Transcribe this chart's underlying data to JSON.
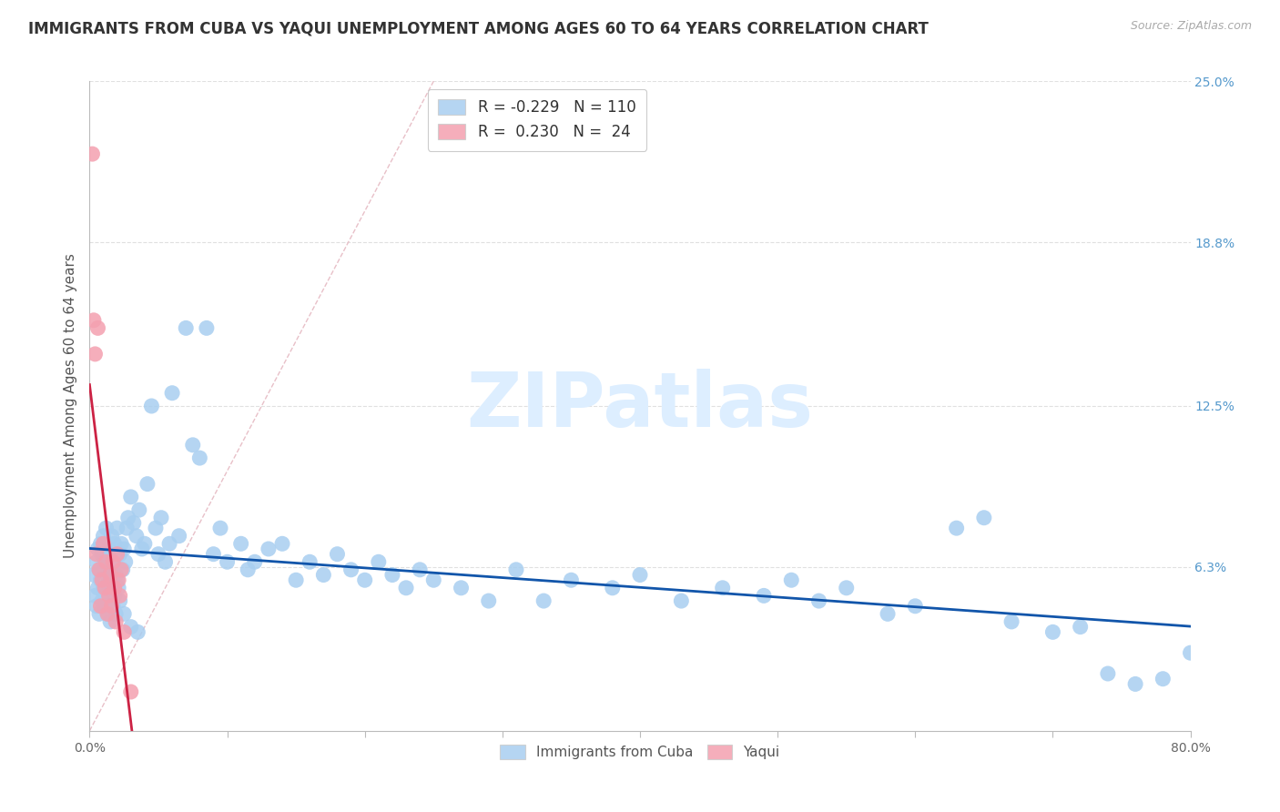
{
  "title": "IMMIGRANTS FROM CUBA VS YAQUI UNEMPLOYMENT AMONG AGES 60 TO 64 YEARS CORRELATION CHART",
  "source": "Source: ZipAtlas.com",
  "ylabel": "Unemployment Among Ages 60 to 64 years",
  "xlim": [
    0.0,
    0.8
  ],
  "ylim": [
    0.0,
    0.25
  ],
  "xtick_positions": [
    0.0,
    0.1,
    0.2,
    0.3,
    0.4,
    0.5,
    0.6,
    0.7,
    0.8
  ],
  "xticklabels": [
    "0.0%",
    "",
    "",
    "",
    "",
    "",
    "",
    "",
    "80.0%"
  ],
  "ytick_positions": [
    0.0,
    0.063,
    0.125,
    0.188,
    0.25
  ],
  "ytick_labels": [
    "",
    "6.3%",
    "12.5%",
    "18.8%",
    "25.0%"
  ],
  "series1_label": "Immigrants from Cuba",
  "series2_label": "Yaqui",
  "series1_color": "#a8cef0",
  "series2_color": "#f4a0b0",
  "series1_edge": "none",
  "series2_edge": "none",
  "trend1_color": "#1155aa",
  "trend2_color": "#cc2244",
  "ref_line_color": "#e8c0c8",
  "background_color": "#ffffff",
  "grid_color": "#e0e0e0",
  "title_fontsize": 12,
  "axis_fontsize": 11,
  "tick_fontsize": 10,
  "right_tick_color": "#5599cc",
  "watermark_text": "ZIPatlas",
  "watermark_color": "#ddeeff",
  "legend1_R": "-0.229",
  "legend1_N": "110",
  "legend2_R": "0.230",
  "legend2_N": "24",
  "scatter1_x": [
    0.003,
    0.004,
    0.005,
    0.005,
    0.006,
    0.006,
    0.007,
    0.007,
    0.008,
    0.008,
    0.009,
    0.009,
    0.01,
    0.01,
    0.011,
    0.011,
    0.012,
    0.012,
    0.013,
    0.013,
    0.014,
    0.014,
    0.015,
    0.015,
    0.016,
    0.016,
    0.017,
    0.017,
    0.018,
    0.018,
    0.019,
    0.019,
    0.02,
    0.02,
    0.021,
    0.022,
    0.023,
    0.024,
    0.025,
    0.026,
    0.027,
    0.028,
    0.03,
    0.032,
    0.034,
    0.036,
    0.038,
    0.04,
    0.042,
    0.045,
    0.048,
    0.05,
    0.052,
    0.055,
    0.058,
    0.06,
    0.065,
    0.07,
    0.075,
    0.08,
    0.085,
    0.09,
    0.095,
    0.1,
    0.11,
    0.115,
    0.12,
    0.13,
    0.14,
    0.15,
    0.16,
    0.17,
    0.18,
    0.19,
    0.2,
    0.21,
    0.22,
    0.23,
    0.24,
    0.25,
    0.27,
    0.29,
    0.31,
    0.33,
    0.35,
    0.38,
    0.4,
    0.43,
    0.46,
    0.49,
    0.51,
    0.53,
    0.55,
    0.58,
    0.6,
    0.63,
    0.65,
    0.67,
    0.7,
    0.72,
    0.74,
    0.76,
    0.78,
    0.8,
    0.015,
    0.018,
    0.022,
    0.025,
    0.03,
    0.035
  ],
  "scatter1_y": [
    0.06,
    0.052,
    0.048,
    0.065,
    0.055,
    0.07,
    0.045,
    0.062,
    0.058,
    0.072,
    0.05,
    0.068,
    0.055,
    0.075,
    0.048,
    0.065,
    0.052,
    0.078,
    0.045,
    0.062,
    0.058,
    0.07,
    0.042,
    0.068,
    0.055,
    0.075,
    0.048,
    0.065,
    0.052,
    0.072,
    0.045,
    0.06,
    0.058,
    0.078,
    0.055,
    0.068,
    0.072,
    0.062,
    0.07,
    0.065,
    0.078,
    0.082,
    0.09,
    0.08,
    0.075,
    0.085,
    0.07,
    0.072,
    0.095,
    0.125,
    0.078,
    0.068,
    0.082,
    0.065,
    0.072,
    0.13,
    0.075,
    0.155,
    0.11,
    0.105,
    0.155,
    0.068,
    0.078,
    0.065,
    0.072,
    0.062,
    0.065,
    0.07,
    0.072,
    0.058,
    0.065,
    0.06,
    0.068,
    0.062,
    0.058,
    0.065,
    0.06,
    0.055,
    0.062,
    0.058,
    0.055,
    0.05,
    0.062,
    0.05,
    0.058,
    0.055,
    0.06,
    0.05,
    0.055,
    0.052,
    0.058,
    0.05,
    0.055,
    0.045,
    0.048,
    0.078,
    0.082,
    0.042,
    0.038,
    0.04,
    0.022,
    0.018,
    0.02,
    0.03,
    0.06,
    0.055,
    0.05,
    0.045,
    0.04,
    0.038
  ],
  "scatter2_x": [
    0.002,
    0.003,
    0.004,
    0.005,
    0.006,
    0.007,
    0.008,
    0.009,
    0.01,
    0.011,
    0.012,
    0.013,
    0.014,
    0.015,
    0.016,
    0.017,
    0.018,
    0.019,
    0.02,
    0.021,
    0.022,
    0.023,
    0.025,
    0.03
  ],
  "scatter2_y": [
    0.222,
    0.158,
    0.145,
    0.068,
    0.155,
    0.062,
    0.048,
    0.058,
    0.072,
    0.055,
    0.065,
    0.045,
    0.052,
    0.06,
    0.048,
    0.065,
    0.055,
    0.042,
    0.068,
    0.058,
    0.052,
    0.062,
    0.038,
    0.015
  ],
  "trend2_x_start": 0.0,
  "trend2_x_end": 0.035
}
